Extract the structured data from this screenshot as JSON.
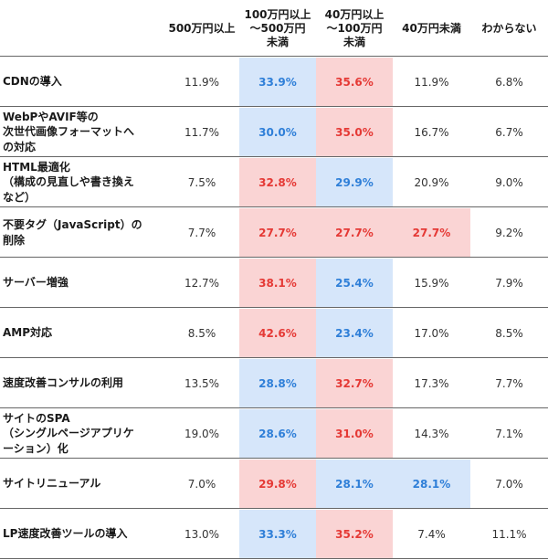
{
  "chart_data": {
    "type": "table",
    "columns": [
      "500万円以上",
      "100万円以上\n〜500万円\n未満",
      "40万円以上\n〜100万円\n未満",
      "40万円未満",
      "わからない"
    ],
    "rows": [
      {
        "label": "CDNの導入",
        "values": [
          "11.9%",
          "33.9%",
          "35.6%",
          "11.9%",
          "6.8%"
        ],
        "highlights": [
          "",
          "blue",
          "red",
          "",
          ""
        ]
      },
      {
        "label": "WebPやAVIF等の\n次世代画像フォーマットへ\nの対応",
        "values": [
          "11.7%",
          "30.0%",
          "35.0%",
          "16.7%",
          "6.7%"
        ],
        "highlights": [
          "",
          "blue",
          "red",
          "",
          ""
        ]
      },
      {
        "label": "HTML最適化\n（構成の見直しや書き換え\nなど）",
        "values": [
          "7.5%",
          "32.8%",
          "29.9%",
          "20.9%",
          "9.0%"
        ],
        "highlights": [
          "",
          "red",
          "blue",
          "",
          ""
        ]
      },
      {
        "label": "不要タグ（JavaScript）の\n削除",
        "values": [
          "7.7%",
          "27.7%",
          "27.7%",
          "27.7%",
          "9.2%"
        ],
        "highlights": [
          "",
          "red",
          "red",
          "red",
          ""
        ]
      },
      {
        "label": "サーバー増強",
        "values": [
          "12.7%",
          "38.1%",
          "25.4%",
          "15.9%",
          "7.9%"
        ],
        "highlights": [
          "",
          "red",
          "blue",
          "",
          ""
        ]
      },
      {
        "label": "AMP対応",
        "values": [
          "8.5%",
          "42.6%",
          "23.4%",
          "17.0%",
          "8.5%"
        ],
        "highlights": [
          "",
          "red",
          "blue",
          "",
          ""
        ]
      },
      {
        "label": "速度改善コンサルの利用",
        "values": [
          "13.5%",
          "28.8%",
          "32.7%",
          "17.3%",
          "7.7%"
        ],
        "highlights": [
          "",
          "blue",
          "red",
          "",
          ""
        ]
      },
      {
        "label": "サイトのSPA\n（シングルページアプリケ\nーション）化",
        "values": [
          "19.0%",
          "28.6%",
          "31.0%",
          "14.3%",
          "7.1%"
        ],
        "highlights": [
          "",
          "blue",
          "red",
          "",
          ""
        ]
      },
      {
        "label": "サイトリニューアル",
        "values": [
          "7.0%",
          "29.8%",
          "28.1%",
          "28.1%",
          "7.0%"
        ],
        "highlights": [
          "",
          "red",
          "blue",
          "blue",
          ""
        ]
      },
      {
        "label": "LP速度改善ツールの導入",
        "values": [
          "13.0%",
          "33.3%",
          "35.2%",
          "7.4%",
          "11.1%"
        ],
        "highlights": [
          "",
          "blue",
          "red",
          "",
          ""
        ]
      }
    ]
  },
  "colors": {
    "red_bg": "#fad4d4",
    "red_text": "#e53935",
    "blue_bg": "#d6e6fa",
    "blue_text": "#2f7fd8",
    "separator": "#666666"
  }
}
